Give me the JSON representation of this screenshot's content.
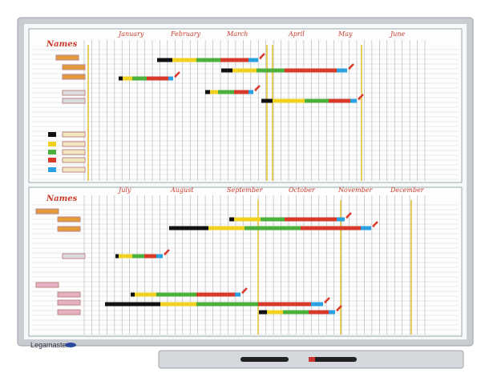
{
  "brand": "Legamaster",
  "boards": [
    {
      "heading": "Names",
      "months": [
        "January",
        "February",
        "March",
        "April",
        "May",
        "June"
      ]
    },
    {
      "heading": "Names",
      "months": [
        "July",
        "August",
        "September",
        "October",
        "November",
        "December"
      ]
    }
  ]
}
